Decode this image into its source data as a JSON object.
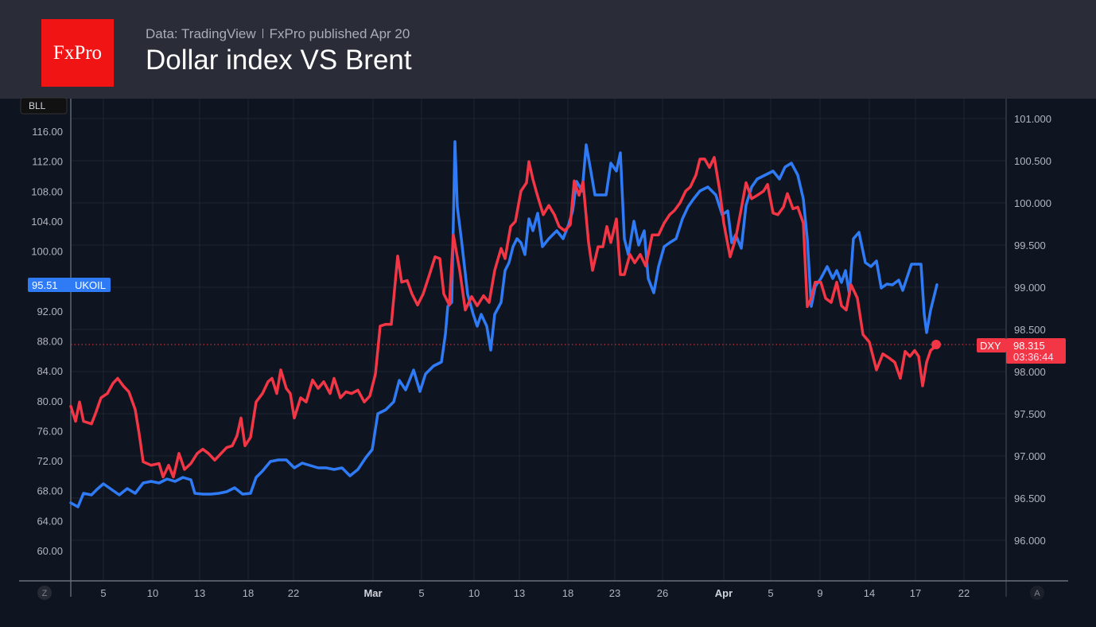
{
  "header": {
    "logo_text": "FxPro",
    "source": "Data: TradingView",
    "published": "FxPro published Apr 20",
    "title": "Dollar index VS Brent"
  },
  "chart_data": {
    "type": "line",
    "title": "Dollar index VS Brent",
    "left_axis": {
      "label": "BLL",
      "ticks": [
        "116.00",
        "112.00",
        "108.00",
        "104.00",
        "100.00",
        "92.00",
        "88.00",
        "84.00",
        "80.00",
        "76.00",
        "72.00",
        "68.00",
        "64.00",
        "60.00"
      ],
      "range": [
        57,
        122
      ]
    },
    "right_axis": {
      "ticks": [
        "101.000",
        "100.500",
        "100.000",
        "99.500",
        "99.000",
        "98.500",
        "98.000",
        "97.500",
        "97.000",
        "96.500",
        "96.000"
      ],
      "range": [
        95.5,
        101.2
      ]
    },
    "x_ticks": [
      "5",
      "10",
      "13",
      "18",
      "22",
      "Mar",
      "5",
      "10",
      "13",
      "18",
      "23",
      "26",
      "Apr",
      "5",
      "9",
      "14",
      "17",
      "22"
    ],
    "x_corner_left": "Z",
    "x_corner_right": "A",
    "grid": true,
    "series": [
      {
        "name": "UKOIL",
        "axis": "left",
        "color": "#2f7bf6",
        "last_value": "95.51",
        "values": [
          66.37,
          65.84,
          67.65,
          67.43,
          68.18,
          68.92,
          68.18,
          67.43,
          68.28,
          67.65,
          69.03,
          69.24,
          69.03,
          69.56,
          69.24,
          69.77,
          69.45,
          67.65,
          67.54,
          67.54,
          67.65,
          67.86,
          68.39,
          67.54,
          67.65,
          69.77,
          70.62,
          71.9,
          72.11,
          72.11,
          71.05,
          71.69,
          71.37,
          71.05,
          71.05,
          70.84,
          71.05,
          69.99,
          70.84,
          72.43,
          73.49,
          78.27,
          78.81,
          79.87,
          82.74,
          81.46,
          84.12,
          81.25,
          83.59,
          84.65,
          85.18,
          88.9,
          92.62,
          93.15,
          114.62,
          105.9,
          101.65,
          94.21,
          91.56,
          89.96,
          91.56,
          89.96,
          86.78,
          91.56,
          93.15,
          97.4,
          98.47,
          100.59,
          101.65,
          101.12,
          99.53,
          104.31,
          102.72,
          105.05,
          100.59,
          101.65,
          102.72,
          101.65,
          103.57,
          105.37,
          109.31,
          108.03,
          114.19,
          111.22,
          107.5,
          107.5,
          107.5,
          111.75,
          110.69,
          113.13,
          101.65,
          99.53,
          103.99,
          100.8,
          102.72,
          96.34,
          94.43,
          97.93,
          100.59,
          101.12,
          101.65,
          104.31,
          105.9,
          106.97,
          108.03,
          108.56,
          107.5,
          104.84,
          105.37,
          101.12,
          102.19,
          100.38,
          106.12,
          108.56,
          109.62,
          110.16,
          110.69,
          109.62,
          111.22,
          111.75,
          110.16,
          106.97,
          101.65,
          92.62,
          95.28,
          96.34,
          97.93,
          96.34,
          97.4,
          95.81,
          97.4,
          94.21,
          101.65,
          102.5,
          98.47,
          97.93,
          98.68,
          95.06,
          95.6,
          95.49,
          96.13,
          94.75,
          96.34,
          98.25,
          98.25,
          98.25,
          91.56,
          89.11,
          92.09,
          95.51
        ]
      },
      {
        "name": "DXY",
        "axis": "right",
        "color": "#f23645",
        "last_value": "98.315",
        "countdown": "03:36:44",
        "values": [
          97.59,
          97.41,
          97.64,
          97.41,
          97.38,
          97.5,
          97.69,
          97.74,
          97.86,
          97.92,
          97.83,
          97.76,
          97.55,
          97.26,
          96.93,
          96.89,
          96.91,
          96.75,
          96.89,
          96.75,
          97.03,
          96.84,
          96.91,
          97.03,
          97.08,
          97.03,
          96.95,
          97.03,
          97.1,
          97.12,
          97.24,
          97.45,
          97.12,
          97.22,
          97.64,
          97.74,
          97.88,
          97.92,
          97.74,
          98.02,
          97.8,
          97.74,
          97.45,
          97.69,
          97.64,
          97.9,
          97.8,
          97.88,
          97.74,
          97.92,
          97.69,
          97.76,
          97.74,
          97.78,
          97.64,
          97.71,
          97.97,
          98.54,
          98.56,
          98.56,
          99.37,
          99.06,
          99.08,
          98.92,
          98.79,
          98.92,
          99.15,
          99.36,
          99.34,
          98.92,
          98.79,
          99.62,
          99.2,
          98.73,
          98.89,
          98.78,
          98.9,
          98.82,
          99.2,
          99.46,
          99.34,
          99.72,
          99.78,
          100.14,
          100.24,
          100.49,
          100.28,
          100.11,
          99.86,
          99.97,
          99.86,
          99.72,
          99.67,
          99.74,
          100.26,
          100.09,
          100.25,
          99.53,
          99.2,
          99.48,
          99.48,
          99.72,
          99.53,
          99.81,
          99.15,
          99.15,
          99.39,
          99.29,
          99.39,
          99.25,
          99.62,
          99.62,
          99.76,
          99.86,
          99.91,
          100.0,
          100.14,
          100.19,
          100.33,
          100.52,
          100.52,
          100.42,
          100.54,
          100.14,
          99.76,
          99.36,
          99.58,
          99.93,
          100.24,
          100.05,
          100.09,
          100.14,
          100.22,
          99.88,
          99.86,
          99.95,
          100.11,
          99.93,
          99.95,
          99.76,
          98.77,
          98.87,
          99.06,
          99.06,
          98.87,
          98.82,
          99.06,
          98.78,
          98.73,
          99.03,
          98.87,
          98.44,
          98.35,
          98.02,
          98.21,
          98.16,
          98.11,
          97.92,
          98.24,
          98.18,
          98.25,
          98.18,
          97.83,
          98.11,
          98.25,
          98.315
        ]
      }
    ]
  }
}
